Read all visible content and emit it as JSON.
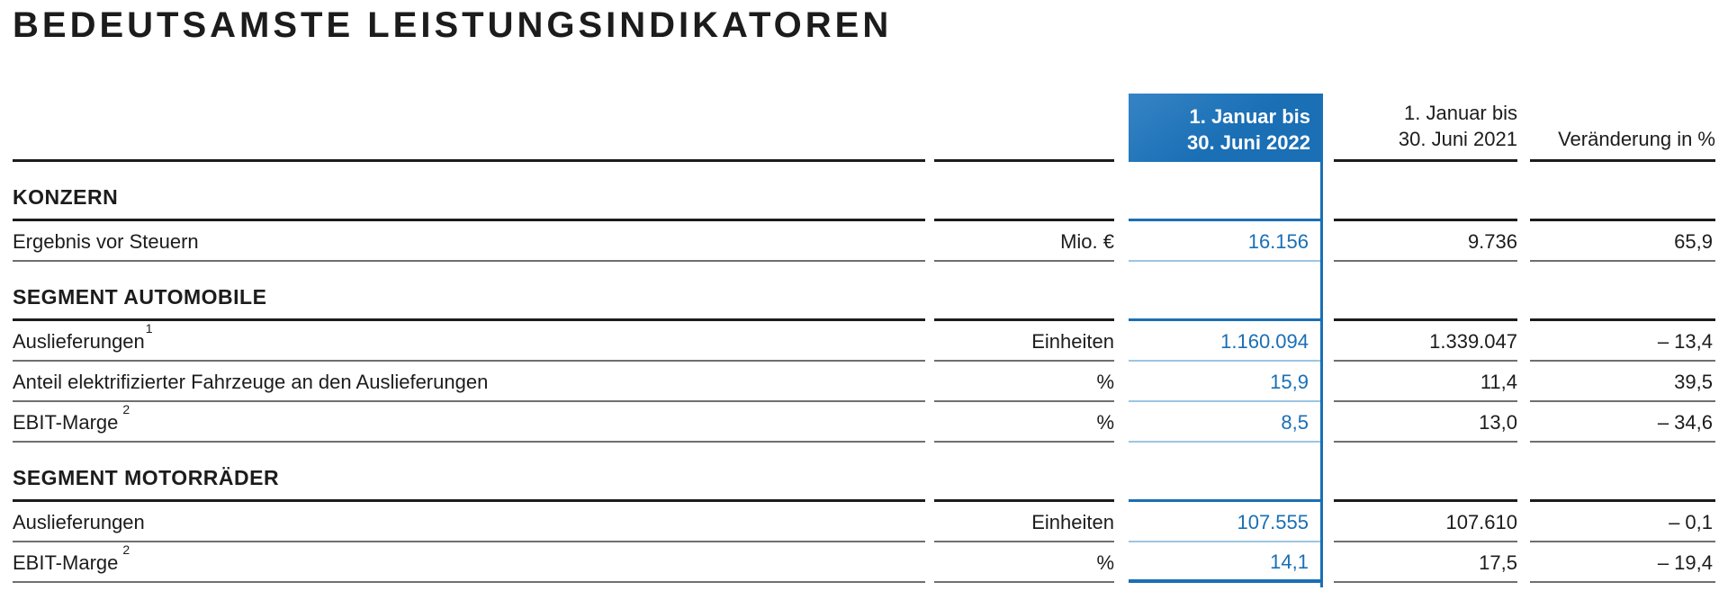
{
  "title": "BEDEUTSAMSTE LEISTUNGSINDIKATOREN",
  "colors": {
    "accent_blue": "#1a6fb5",
    "accent_blue_light": "#9cc5e2",
    "text": "#1c1c1c"
  },
  "table": {
    "columns": {
      "period_current": {
        "line1": "1. Januar bis",
        "line2": "30. Juni 2022"
      },
      "period_prior": {
        "line1": "1. Januar bis",
        "line2": "30. Juni 2021"
      },
      "change": "Veränderung in %"
    },
    "sections": [
      {
        "heading": "KONZERN",
        "rows": [
          {
            "label": "Ergebnis vor Steuern",
            "unit": "Mio. €",
            "current": "16.156",
            "prior": "9.736",
            "change": "65,9"
          }
        ]
      },
      {
        "heading": "SEGMENT AUTOMOBILE",
        "rows": [
          {
            "label": "Auslieferungen",
            "footnote": "1",
            "unit": "Einheiten",
            "current": "1.160.094",
            "prior": "1.339.047",
            "change": "– 13,4"
          },
          {
            "label": "Anteil elektrifizierter Fahrzeuge an den Auslieferungen",
            "unit": "%",
            "current": "15,9",
            "prior": "11,4",
            "change": "39,5"
          },
          {
            "label": "EBIT-Marge",
            "footnote": "2",
            "unit": "%",
            "current": "8,5",
            "prior": "13,0",
            "change": "– 34,6"
          }
        ]
      },
      {
        "heading": "SEGMENT MOTORRÄDER",
        "rows": [
          {
            "label": "Auslieferungen",
            "unit": "Einheiten",
            "current": "107.555",
            "prior": "107.610",
            "change": "– 0,1"
          },
          {
            "label": "EBIT-Marge",
            "footnote": "2",
            "unit": "%",
            "current": "14,1",
            "prior": "17,5",
            "change": "– 19,4"
          }
        ]
      }
    ]
  }
}
